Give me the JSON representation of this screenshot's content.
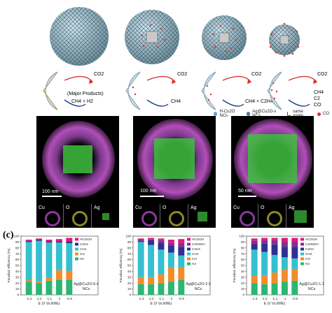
{
  "top": {
    "schemes": [
      {
        "co2": "CO2",
        "products": "CH4 + H2",
        "note": "(Major Products)"
      },
      {
        "co2": "CO2",
        "products": "CH4",
        "note": ""
      },
      {
        "co2": "CO2",
        "products": "CH4 + C2H4",
        "note": ""
      },
      {
        "co2": "CO2",
        "products_stack": [
          "CH4",
          "C2",
          "CO"
        ],
        "note": ""
      }
    ],
    "legend": [
      {
        "label": "H-Cu2O NCs",
        "color": "#6aa2c8"
      },
      {
        "label": "Ag@Cu2O-x NCs",
        "color": "#4b7f96"
      },
      {
        "label": "same angle",
        "color": "#d22"
      },
      {
        "label": "CO",
        "color": "#d33"
      }
    ]
  },
  "middle": {
    "panels": [
      {
        "scale": "100 nm",
        "thumbs": [
          "Cu",
          "O",
          "Ag"
        ]
      },
      {
        "scale": "100 nm",
        "thumbs": [
          "Cu",
          "O",
          "Ag"
        ]
      },
      {
        "scale": "50 nm",
        "thumbs": [
          "Cu",
          "O",
          "Ag"
        ]
      }
    ]
  },
  "panel_c_label": "(c)",
  "chart_data": [
    {
      "type": "bar",
      "stacked": true,
      "categories": [
        "-1.3",
        "-1.2",
        "-1.1",
        "-1",
        "-0.9"
      ],
      "xlabel": "E (V Vs.RHE)",
      "ylabel": "Faradaic efficiency (%)",
      "ylim": [
        0,
        100
      ],
      "yticks": [
        0,
        10,
        20,
        30,
        40,
        50,
        60,
        70,
        80,
        90,
        100
      ],
      "annotation": [
        "Ag@Cu2O-6.4",
        "NCs"
      ],
      "series": [
        {
          "name": "H2",
          "color": "#2bb673",
          "values": [
            22,
            20,
            24,
            25,
            26
          ]
        },
        {
          "name": "CO",
          "color": "#f28c28",
          "values": [
            3,
            3,
            5,
            17,
            15
          ]
        },
        {
          "name": "CH4",
          "color": "#35c0d0",
          "values": [
            65,
            69,
            60,
            47,
            47
          ]
        },
        {
          "name": "C2H4",
          "color": "#2e3192",
          "values": [
            2,
            2,
            2,
            2,
            3
          ]
        },
        {
          "name": "HCOOH",
          "color": "#e5177b",
          "values": [
            2,
            2,
            3,
            4,
            6
          ]
        }
      ]
    },
    {
      "type": "bar",
      "stacked": true,
      "categories": [
        "-1.3",
        "-1.2",
        "-1.1",
        "-1",
        "-0.9"
      ],
      "xlabel": "E (V Vs.RHE)",
      "ylabel": "Faradaic efficiency (%)",
      "ylim": [
        0,
        100
      ],
      "yticks": [
        0,
        10,
        20,
        30,
        40,
        50,
        60,
        70,
        80,
        90,
        100
      ],
      "annotation": [
        "Ag@Cu2O-2.9",
        "NCs"
      ],
      "series": [
        {
          "name": "H2",
          "color": "#2bb673",
          "values": [
            18,
            18,
            20,
            22,
            25
          ]
        },
        {
          "name": "CO",
          "color": "#f28c28",
          "values": [
            12,
            12,
            15,
            25,
            22
          ]
        },
        {
          "name": "CH4",
          "color": "#35c0d0",
          "values": [
            60,
            55,
            42,
            25,
            20
          ]
        },
        {
          "name": "C2H4",
          "color": "#2e3192",
          "values": [
            2,
            8,
            12,
            12,
            14
          ]
        },
        {
          "name": "C2H5OH",
          "color": "#8b2c8e",
          "values": [
            2,
            2,
            4,
            5,
            8
          ]
        },
        {
          "name": "HCOOH",
          "color": "#e5177b",
          "values": [
            2,
            2,
            3,
            5,
            6
          ]
        }
      ]
    },
    {
      "type": "bar",
      "stacked": true,
      "categories": [
        "-1.3",
        "-1.2",
        "-1.1",
        "-1",
        "-0.9"
      ],
      "xlabel": "E (V Vs.RHE)",
      "ylabel": "Faradaic efficiency (%)",
      "ylim": [
        0,
        100
      ],
      "yticks": [
        0,
        10,
        20,
        30,
        40,
        50,
        60,
        70,
        80,
        90,
        100
      ],
      "annotation": [
        "Ag@Cu2O-1.1",
        "NCs"
      ],
      "series": [
        {
          "name": "H2",
          "color": "#2bb673",
          "values": [
            20,
            18,
            20,
            22,
            24
          ]
        },
        {
          "name": "CO",
          "color": "#f28c28",
          "values": [
            12,
            15,
            18,
            22,
            20
          ]
        },
        {
          "name": "CH4",
          "color": "#35c0d0",
          "values": [
            45,
            40,
            30,
            20,
            18
          ]
        },
        {
          "name": "C2H4",
          "color": "#2e3192",
          "values": [
            10,
            14,
            18,
            18,
            20
          ]
        },
        {
          "name": "C2H5OH",
          "color": "#8b2c8e",
          "values": [
            5,
            6,
            7,
            9,
            9
          ]
        },
        {
          "name": "HCOOH",
          "color": "#e5177b",
          "values": [
            4,
            4,
            4,
            6,
            6
          ]
        }
      ]
    }
  ]
}
